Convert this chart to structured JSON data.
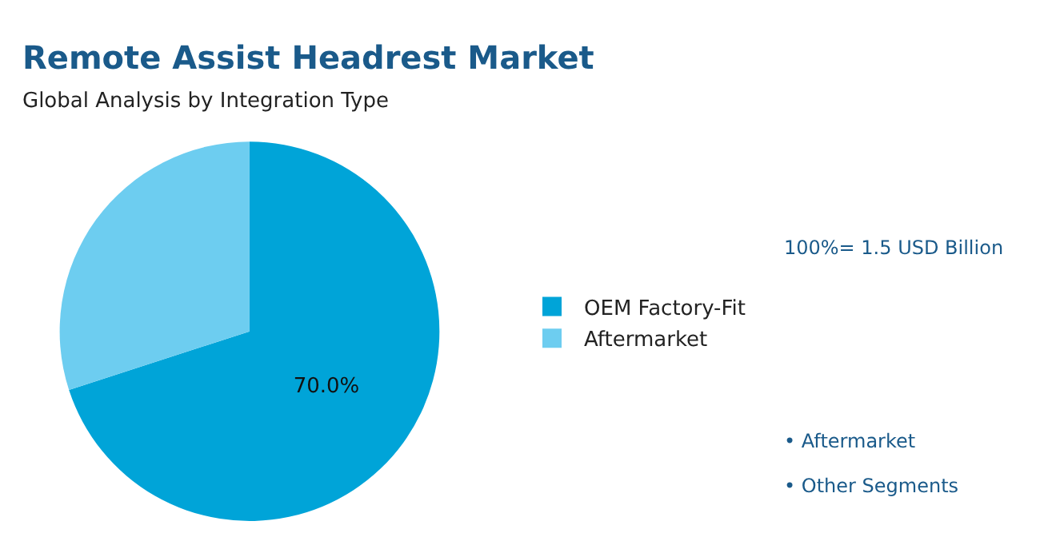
{
  "chart_data": {
    "type": "pie",
    "title": "Remote Assist Headrest Market",
    "subtitle": "Global Analysis by Integration Type",
    "categories": [
      "OEM Factory-Fit",
      "Aftermarket"
    ],
    "values": [
      70,
      30
    ],
    "colors": [
      "#00a4d8",
      "#6dcdf0"
    ],
    "value_labels": [
      "70.0%",
      null
    ],
    "legend": "right",
    "annotations": [
      "100%= 1.5 USD Billion",
      "• Aftermarket",
      "• Other Segments"
    ]
  }
}
